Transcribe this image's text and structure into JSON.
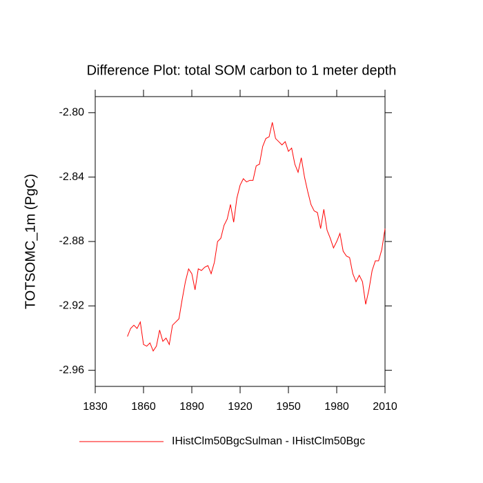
{
  "chart_data": {
    "type": "line",
    "title": "Difference Plot: total SOM carbon to 1 meter depth",
    "y_label": "TOTSOMC_1m  (PgC)",
    "xlim": [
      1830,
      2010
    ],
    "xticks": [
      1830,
      1860,
      1890,
      1920,
      1950,
      1980,
      2010
    ],
    "ylim": [
      -2.97,
      -2.79
    ],
    "yticks": [
      {
        "value": -2.8,
        "label": "-2.80"
      },
      -2.84,
      -2.88,
      -2.92,
      -2.96
    ],
    "x": [
      1850,
      1852,
      1854,
      1856,
      1858,
      1860,
      1862,
      1864,
      1866,
      1868,
      1870,
      1872,
      1874,
      1876,
      1878,
      1880,
      1882,
      1884,
      1886,
      1888,
      1890,
      1892,
      1894,
      1896,
      1898,
      1900,
      1902,
      1904,
      1906,
      1908,
      1910,
      1912,
      1914,
      1916,
      1918,
      1920,
      1922,
      1924,
      1926,
      1928,
      1930,
      1932,
      1934,
      1936,
      1938,
      1940,
      1942,
      1944,
      1946,
      1948,
      1950,
      1952,
      1954,
      1956,
      1958,
      1960,
      1962,
      1964,
      1966,
      1968,
      1970,
      1972,
      1974,
      1976,
      1978,
      1980,
      1982,
      1984,
      1986,
      1988,
      1990,
      1992,
      1994,
      1996,
      1998,
      2000,
      2002,
      2004,
      2006,
      2008,
      2010
    ],
    "series": [
      {
        "name": "IHistClm50BgcSulman - IHistClm50Bgc",
        "color": "#ff0000",
        "values": [
          -2.939,
          -2.934,
          -2.932,
          -2.934,
          -2.93,
          -2.944,
          -2.945,
          -2.943,
          -2.948,
          -2.945,
          -2.935,
          -2.942,
          -2.94,
          -2.944,
          -2.932,
          -2.93,
          -2.928,
          -2.916,
          -2.905,
          -2.897,
          -2.9,
          -2.91,
          -2.897,
          -2.898,
          -2.896,
          -2.895,
          -2.9,
          -2.893,
          -2.88,
          -2.878,
          -2.87,
          -2.866,
          -2.857,
          -2.868,
          -2.853,
          -2.845,
          -2.841,
          -2.843,
          -2.842,
          -2.842,
          -2.833,
          -2.832,
          -2.821,
          -2.816,
          -2.815,
          -2.806,
          -2.816,
          -2.818,
          -2.82,
          -2.818,
          -2.824,
          -2.822,
          -2.832,
          -2.837,
          -2.828,
          -2.84,
          -2.849,
          -2.857,
          -2.861,
          -2.862,
          -2.872,
          -2.86,
          -2.873,
          -2.878,
          -2.884,
          -2.88,
          -2.875,
          -2.886,
          -2.889,
          -2.89,
          -2.9,
          -2.905,
          -2.901,
          -2.905,
          -2.919,
          -2.91,
          -2.898,
          -2.892,
          -2.892,
          -2.885,
          -2.872
        ]
      }
    ]
  }
}
